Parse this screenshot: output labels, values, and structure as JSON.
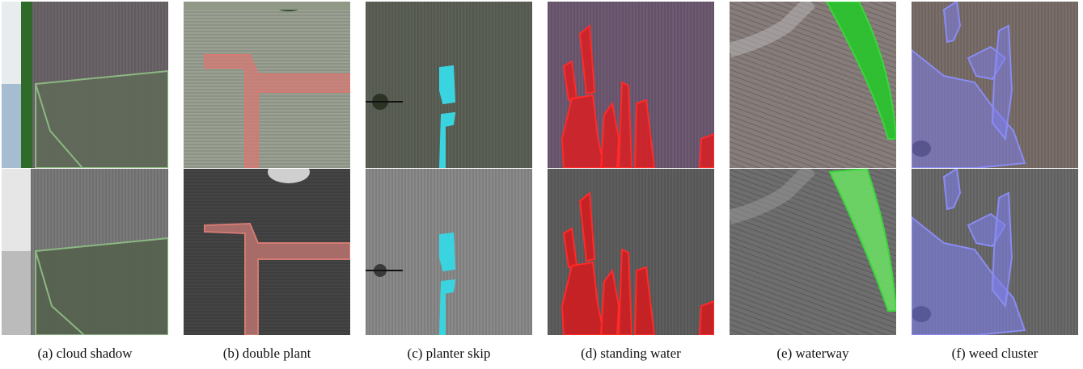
{
  "panels": [
    {
      "caption": "(a) cloud shadow"
    },
    {
      "caption": "(b) double plant"
    },
    {
      "caption": "(c) planter skip"
    },
    {
      "caption": "(d) standing water"
    },
    {
      "caption": "(e) waterway"
    },
    {
      "caption": "(f) weed cluster"
    }
  ]
}
